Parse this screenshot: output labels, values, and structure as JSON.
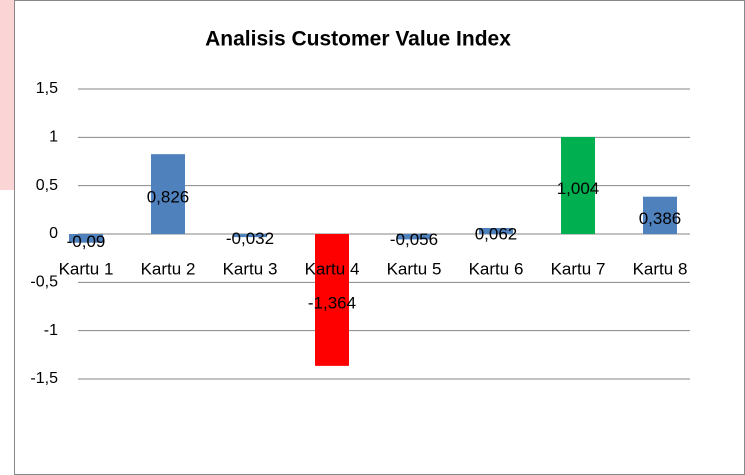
{
  "chart_data": {
    "type": "bar",
    "title": "Analisis Customer Value Index",
    "categories": [
      "Kartu 1",
      "Kartu 2",
      "Kartu 3",
      "Kartu 4",
      "Kartu 5",
      "Kartu 6",
      "Kartu 7",
      "Kartu 8"
    ],
    "values": [
      -0.09,
      0.826,
      -0.032,
      -1.364,
      -0.056,
      0.062,
      1.004,
      0.386
    ],
    "value_labels": [
      "-0,09",
      "0,826",
      "-0,032",
      "-1,364",
      "-0,056",
      "0,062",
      "1,004",
      "0,386"
    ],
    "colors": [
      "#4f81bd",
      "#4f81bd",
      "#4f81bd",
      "#ff0000",
      "#4f81bd",
      "#4f81bd",
      "#00b050",
      "#4f81bd"
    ],
    "ylim": [
      -1.5,
      1.5
    ],
    "yticks": [
      {
        "value": -1.5,
        "label": "-1,5"
      },
      -1,
      {
        "value": -0.5,
        "label": "-0,5"
      },
      0,
      {
        "value": 0.5,
        "label": "0,5"
      },
      1,
      {
        "value": 1.5,
        "label": "1,5"
      }
    ],
    "grid": true
  }
}
